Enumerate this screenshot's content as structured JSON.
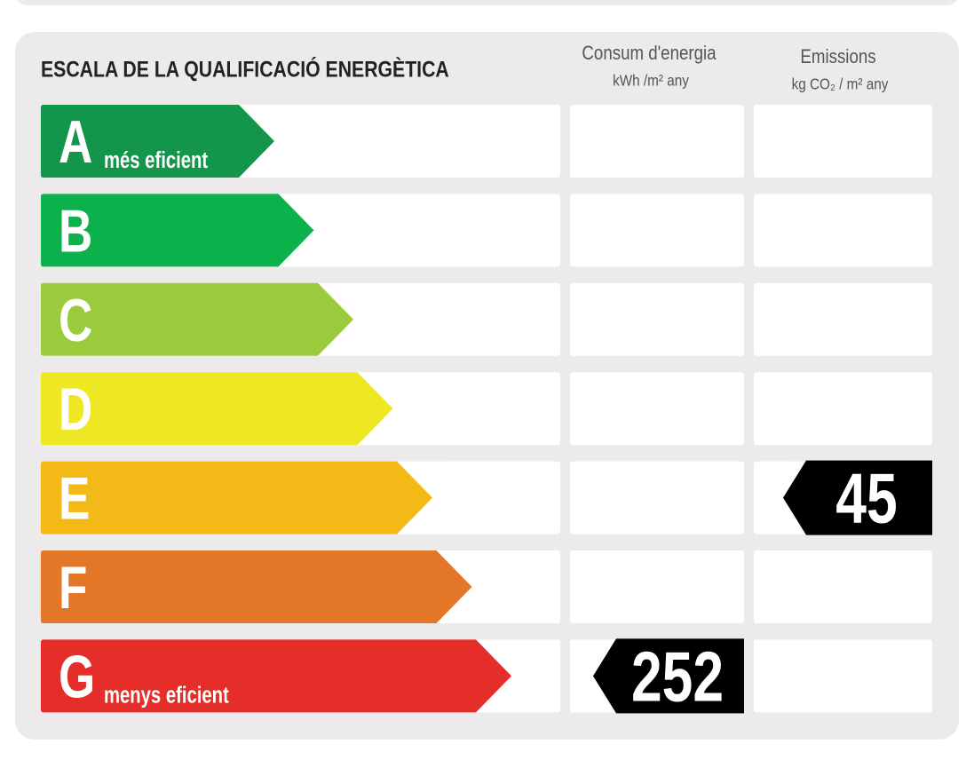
{
  "header": {
    "title": "ESCALA DE LA QUALIFICACIÓ ENERGÈTICA",
    "consumption_title": "Consum d'energia",
    "consumption_unit": "kWh /m² any",
    "emissions_title": "Emissions",
    "emissions_unit": "kg CO₂ / m² any"
  },
  "ratings": [
    {
      "letter": "A",
      "note": "més eficient",
      "color": "#13954b"
    },
    {
      "letter": "B",
      "color": "#0db14b"
    },
    {
      "letter": "C",
      "color": "#9acb3c"
    },
    {
      "letter": "D",
      "color": "#eee824"
    },
    {
      "letter": "E",
      "color": "#f2b917"
    },
    {
      "letter": "F",
      "color": "#e47727"
    },
    {
      "letter": "G",
      "note": "menys eficient",
      "color": "#e52d2a"
    }
  ],
  "consumption": {
    "value": 252,
    "class": "G"
  },
  "emissions": {
    "value": 45,
    "class": "E"
  }
}
